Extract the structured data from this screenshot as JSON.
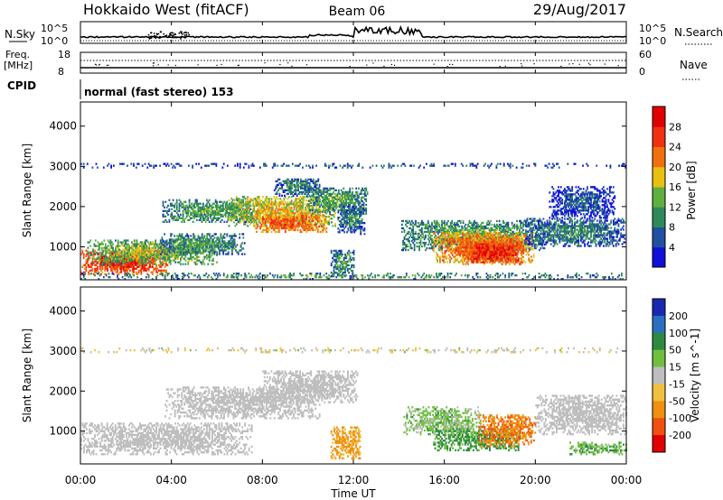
{
  "header": {
    "station": "Hokkaido West (fitACF)",
    "beam": "Beam 06",
    "date": "29/Aug/2017"
  },
  "noise_panel": {
    "label": "N.Sky",
    "left_ticks": [
      "10^5",
      "10^0"
    ],
    "right_ticks": [
      "10^5",
      "10^0"
    ],
    "right_label": "N.Search"
  },
  "freq_panel": {
    "label_line1": "Freq.",
    "label_line2": "[MHz]",
    "left_ticks": [
      "18",
      "8"
    ],
    "right_ticks": [
      "60",
      "0"
    ],
    "right_label": "Nave"
  },
  "cpid_panel": {
    "label": "CPID",
    "text": "normal (fast stereo) 153"
  },
  "colors": {
    "power_scale": [
      "#1010d8",
      "#2050a0",
      "#2e8a5a",
      "#60b040",
      "#e8c010",
      "#f07010",
      "#f03010",
      "#e00000"
    ],
    "velocity_scale": [
      "#1a2ab0",
      "#2a70c0",
      "#2e8a40",
      "#70c040",
      "#bebebe",
      "#f0c040",
      "#f09010",
      "#f05010",
      "#e00000"
    ]
  },
  "chart_data": [
    {
      "type": "heatmap",
      "title": "",
      "xlabel": "Time UT",
      "ylabel": "Slant Range [km]",
      "x_ticks": [
        "00:00",
        "04:00",
        "08:00",
        "12:00",
        "16:00",
        "20:00",
        "00:00"
      ],
      "xlim_hours": [
        0,
        24
      ],
      "y_ticks": [
        1000,
        2000,
        3000,
        4000
      ],
      "ylim": [
        180,
        4600
      ],
      "colorbar": {
        "label": "Power [dB]",
        "ticks": [
          4,
          8,
          12,
          16,
          20,
          24,
          28
        ],
        "range": [
          0,
          32
        ]
      },
      "regions": [
        {
          "t0": 0.0,
          "t1": 3.8,
          "r0": 300,
          "r1": 900,
          "level": 29
        },
        {
          "t0": 0.3,
          "t1": 6.0,
          "r0": 550,
          "r1": 1150,
          "level": 17
        },
        {
          "t0": 3.5,
          "t1": 7.2,
          "r0": 800,
          "r1": 1300,
          "level": 13
        },
        {
          "t0": 3.6,
          "t1": 7.8,
          "r0": 1600,
          "r1": 2150,
          "level": 14
        },
        {
          "t0": 6.5,
          "t1": 11.2,
          "r0": 1500,
          "r1": 2250,
          "level": 20
        },
        {
          "t0": 7.6,
          "t1": 10.8,
          "r0": 1350,
          "r1": 1800,
          "level": 26
        },
        {
          "t0": 8.5,
          "t1": 10.5,
          "r0": 2250,
          "r1": 2700,
          "level": 11
        },
        {
          "t0": 10.0,
          "t1": 12.6,
          "r0": 1800,
          "r1": 2450,
          "level": 14
        },
        {
          "t0": 11.0,
          "t1": 12.0,
          "r0": 250,
          "r1": 900,
          "level": 13
        },
        {
          "t0": 11.3,
          "t1": 12.5,
          "r0": 1300,
          "r1": 2000,
          "level": 11
        },
        {
          "t0": 14.1,
          "t1": 20.4,
          "r0": 900,
          "r1": 1650,
          "level": 14
        },
        {
          "t0": 15.5,
          "t1": 19.9,
          "r0": 600,
          "r1": 1350,
          "level": 25
        },
        {
          "t0": 16.8,
          "t1": 19.5,
          "r0": 550,
          "r1": 1100,
          "level": 29
        },
        {
          "t0": 19.5,
          "t1": 23.9,
          "r0": 1000,
          "r1": 1700,
          "level": 11
        },
        {
          "t0": 20.6,
          "t1": 23.5,
          "r0": 1700,
          "r1": 2500,
          "level": 8
        },
        {
          "t0": 0.0,
          "t1": 24.0,
          "r0": 2950,
          "r1": 3050,
          "level": 9
        },
        {
          "t0": 0.0,
          "t1": 24.0,
          "r0": 180,
          "r1": 330,
          "level": 13
        }
      ]
    },
    {
      "type": "heatmap",
      "title": "",
      "xlabel": "Time UT",
      "ylabel": "Slant Range [km]",
      "x_ticks": [
        "00:00",
        "04:00",
        "08:00",
        "12:00",
        "16:00",
        "20:00",
        "00:00"
      ],
      "xlim_hours": [
        0,
        24
      ],
      "y_ticks": [
        1000,
        2000,
        3000,
        4000
      ],
      "ylim": [
        180,
        4600
      ],
      "colorbar": {
        "label": "Velocity [m s^-1]",
        "ticks": [
          "200",
          "100",
          "50",
          "15",
          "-15",
          "-50",
          "-100",
          "-200"
        ]
      },
      "regions": [
        {
          "t0": 0.0,
          "t1": 7.5,
          "r0": 400,
          "r1": 1200,
          "v": 0
        },
        {
          "t0": 3.7,
          "t1": 10.5,
          "r0": 1300,
          "r1": 2100,
          "v": 0
        },
        {
          "t0": 8.0,
          "t1": 12.2,
          "r0": 1700,
          "r1": 2500,
          "v": 0
        },
        {
          "t0": 11.0,
          "t1": 12.3,
          "r0": 300,
          "r1": 1100,
          "v": -60
        },
        {
          "t0": 14.2,
          "t1": 17.6,
          "r0": 900,
          "r1": 1600,
          "v": 25
        },
        {
          "t0": 15.5,
          "t1": 19.3,
          "r0": 500,
          "r1": 1050,
          "v": 60
        },
        {
          "t0": 17.5,
          "t1": 20.0,
          "r0": 600,
          "r1": 1400,
          "v": -90
        },
        {
          "t0": 20.0,
          "t1": 24.0,
          "r0": 900,
          "r1": 1900,
          "v": 0
        },
        {
          "t0": 21.5,
          "t1": 24.0,
          "r0": 400,
          "r1": 700,
          "v": 40
        },
        {
          "t0": 0.0,
          "t1": 24.0,
          "r0": 2950,
          "r1": 3050,
          "v": -10
        }
      ]
    }
  ]
}
